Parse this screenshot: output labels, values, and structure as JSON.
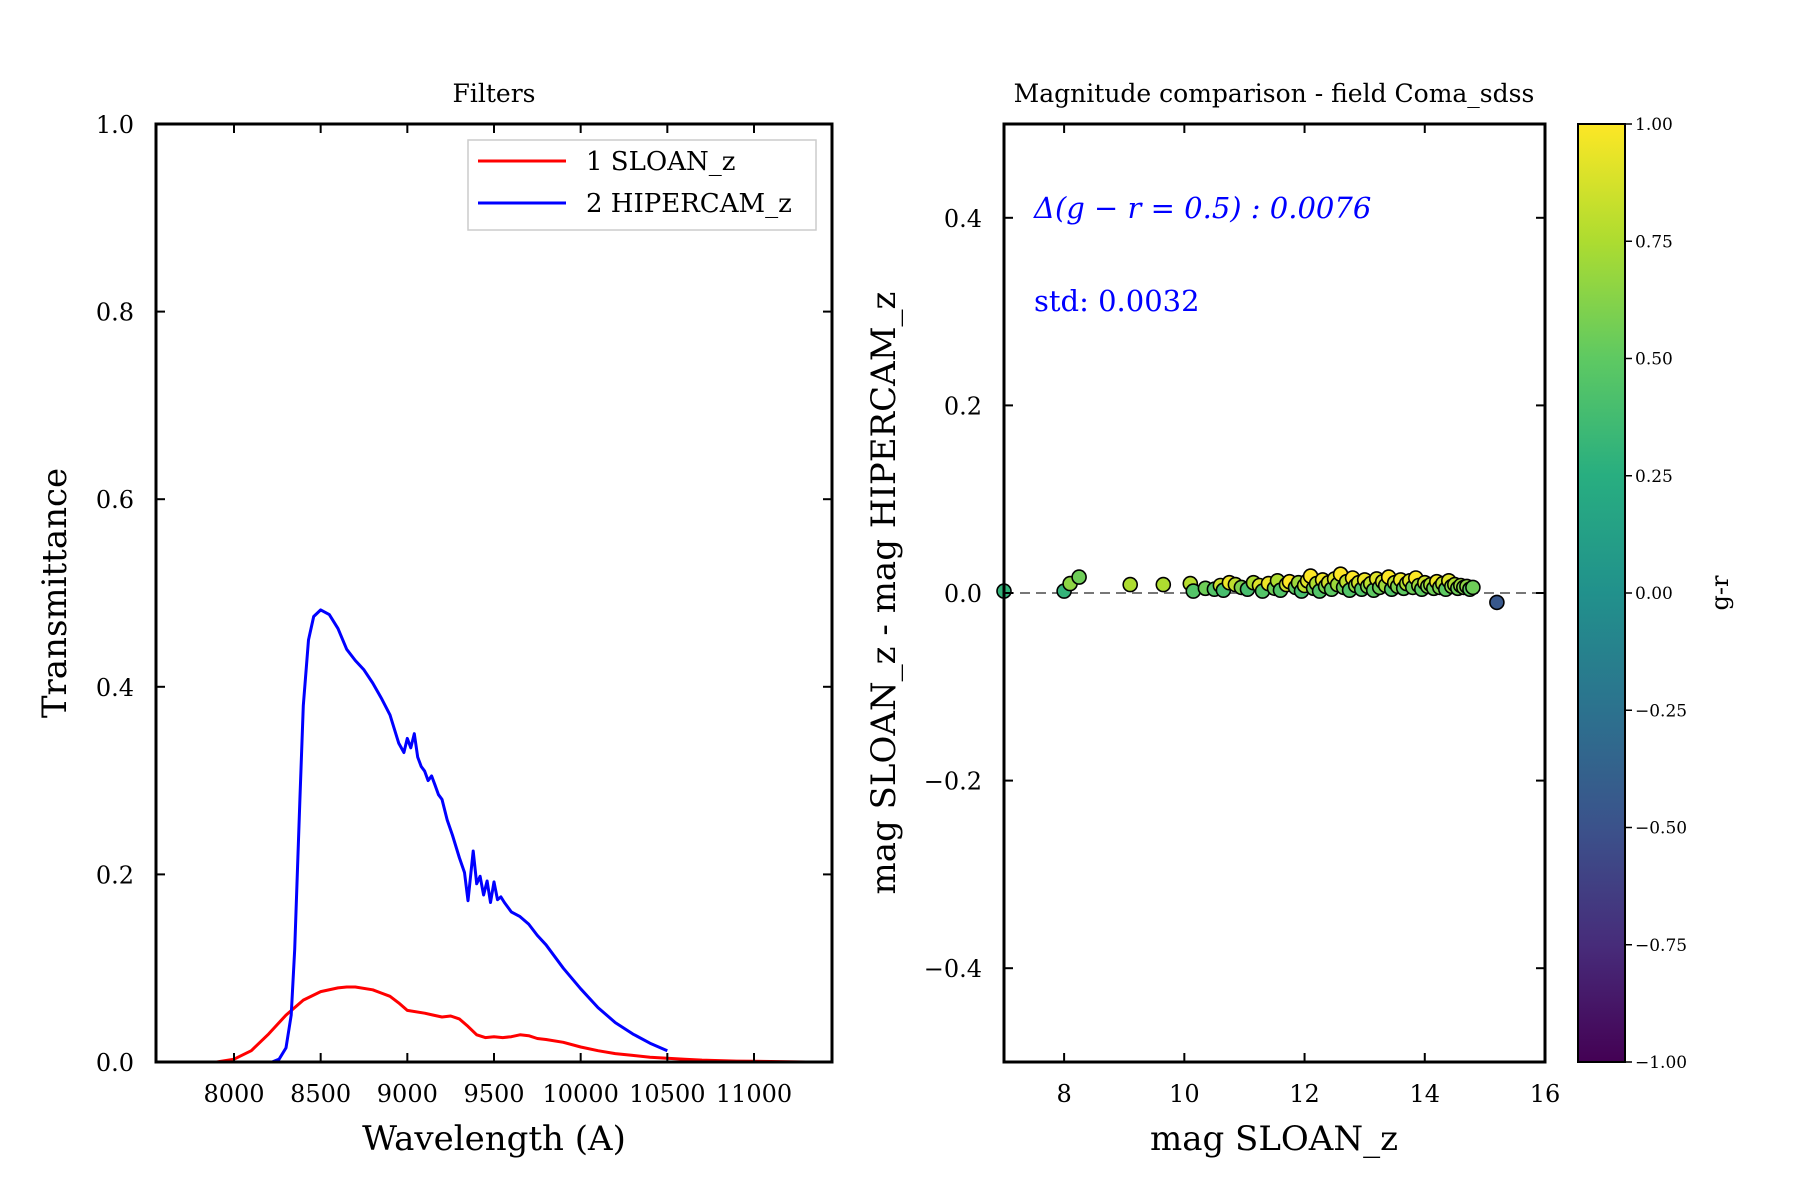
{
  "chart_data": [
    {
      "type": "line",
      "title": "Filters",
      "xlabel": "Wavelength (A)",
      "ylabel": "Transmittance",
      "xlim": [
        7550,
        11450
      ],
      "ylim": [
        0,
        1
      ],
      "xticks": [
        8000,
        8500,
        9000,
        9500,
        10000,
        10500,
        11000
      ],
      "xtick_labels": [
        "8000",
        "8500",
        "9000",
        "9500",
        "10000",
        "10500",
        "11000"
      ],
      "yticks": [
        0,
        0.2,
        0.4,
        0.6,
        0.8,
        1.0
      ],
      "ytick_labels": [
        "0.0",
        "0.2",
        "0.4",
        "0.6",
        "0.8",
        "1.0"
      ],
      "legend_position": "top-right",
      "series": [
        {
          "name": "1 SLOAN_z",
          "color": "#ff0000",
          "x": [
            7900,
            8000,
            8100,
            8200,
            8300,
            8400,
            8500,
            8600,
            8650,
            8700,
            8800,
            8900,
            8950,
            9000,
            9100,
            9150,
            9200,
            9250,
            9300,
            9350,
            9400,
            9450,
            9500,
            9550,
            9600,
            9650,
            9700,
            9750,
            9800,
            9900,
            10000,
            10100,
            10200,
            10300,
            10400,
            10500,
            10600,
            10700,
            10800,
            10900,
            11000,
            11200,
            11300
          ],
          "y": [
            0.0,
            0.003,
            0.012,
            0.03,
            0.05,
            0.066,
            0.075,
            0.079,
            0.08,
            0.08,
            0.077,
            0.07,
            0.063,
            0.055,
            0.052,
            0.05,
            0.048,
            0.049,
            0.046,
            0.038,
            0.029,
            0.026,
            0.027,
            0.026,
            0.027,
            0.029,
            0.028,
            0.025,
            0.024,
            0.021,
            0.016,
            0.012,
            0.009,
            0.007,
            0.005,
            0.004,
            0.003,
            0.002,
            0.0015,
            0.001,
            0.0007,
            0.0003,
            0.0
          ]
        },
        {
          "name": "2 HIPERCAM_z",
          "color": "#0000ff",
          "x": [
            8220,
            8260,
            8300,
            8330,
            8350,
            8380,
            8400,
            8430,
            8460,
            8500,
            8550,
            8600,
            8650,
            8700,
            8750,
            8800,
            8850,
            8900,
            8950,
            8980,
            9000,
            9020,
            9040,
            9060,
            9080,
            9100,
            9120,
            9140,
            9160,
            9180,
            9200,
            9230,
            9260,
            9300,
            9330,
            9350,
            9380,
            9400,
            9420,
            9440,
            9460,
            9480,
            9500,
            9520,
            9540,
            9560,
            9600,
            9650,
            9700,
            9750,
            9800,
            9900,
            10000,
            10100,
            10200,
            10300,
            10400,
            10500
          ],
          "y": [
            0.0,
            0.003,
            0.015,
            0.05,
            0.12,
            0.28,
            0.38,
            0.45,
            0.475,
            0.482,
            0.477,
            0.462,
            0.44,
            0.428,
            0.418,
            0.404,
            0.388,
            0.37,
            0.34,
            0.33,
            0.345,
            0.335,
            0.35,
            0.325,
            0.315,
            0.31,
            0.3,
            0.305,
            0.295,
            0.285,
            0.28,
            0.258,
            0.242,
            0.218,
            0.202,
            0.172,
            0.225,
            0.19,
            0.198,
            0.178,
            0.193,
            0.17,
            0.192,
            0.173,
            0.176,
            0.17,
            0.16,
            0.155,
            0.147,
            0.135,
            0.125,
            0.1,
            0.078,
            0.058,
            0.042,
            0.03,
            0.02,
            0.012
          ]
        }
      ]
    },
    {
      "type": "scatter",
      "title": "Magnitude comparison - field Coma_sdss",
      "xlabel": "mag SLOAN_z",
      "ylabel": "mag SLOAN_z - mag HIPERCAM_z",
      "xlim": [
        7,
        16
      ],
      "ylim": [
        -0.5,
        0.5
      ],
      "xticks": [
        8,
        10,
        12,
        14,
        16
      ],
      "xtick_labels": [
        "8",
        "10",
        "12",
        "14",
        "16"
      ],
      "yticks": [
        -0.4,
        -0.2,
        0.0,
        0.2,
        0.4
      ],
      "ytick_labels": [
        "−0.4",
        "−0.2",
        "0.0",
        "0.2",
        "0.4"
      ],
      "reference_line": {
        "y": 0,
        "style": "dashed",
        "color": "#777777"
      },
      "annotations": [
        "Δ(g − r = 0.5) : 0.0076",
        "std: 0.0032"
      ],
      "colorbar": {
        "label": "g-r",
        "range": [
          -1,
          1
        ],
        "ticks": [
          1.0,
          0.75,
          0.5,
          0.25,
          0.0,
          -0.25,
          -0.5,
          -0.75,
          -1.0
        ],
        "tick_labels": [
          "1.00",
          "0.75",
          "0.50",
          "0.25",
          "0.00",
          "−0.25",
          "−0.50",
          "−0.75",
          "−1.00"
        ],
        "colormap": "viridis"
      },
      "points": [
        {
          "x": 7.0,
          "y": 0.002,
          "c": 0.3
        },
        {
          "x": 8.0,
          "y": 0.002,
          "c": 0.3
        },
        {
          "x": 8.1,
          "y": 0.01,
          "c": 0.65
        },
        {
          "x": 8.25,
          "y": 0.017,
          "c": 0.55
        },
        {
          "x": 9.1,
          "y": 0.009,
          "c": 0.75
        },
        {
          "x": 9.65,
          "y": 0.009,
          "c": 0.75
        },
        {
          "x": 10.1,
          "y": 0.01,
          "c": 0.78
        },
        {
          "x": 10.15,
          "y": 0.002,
          "c": 0.45
        },
        {
          "x": 10.35,
          "y": 0.005,
          "c": 0.55
        },
        {
          "x": 10.5,
          "y": 0.004,
          "c": 0.45
        },
        {
          "x": 10.6,
          "y": 0.008,
          "c": 0.85
        },
        {
          "x": 10.65,
          "y": 0.003,
          "c": 0.4
        },
        {
          "x": 10.75,
          "y": 0.011,
          "c": 0.95
        },
        {
          "x": 10.85,
          "y": 0.009,
          "c": 0.8
        },
        {
          "x": 10.95,
          "y": 0.006,
          "c": 0.6
        },
        {
          "x": 11.05,
          "y": 0.004,
          "c": 0.4
        },
        {
          "x": 11.15,
          "y": 0.011,
          "c": 0.75
        },
        {
          "x": 11.25,
          "y": 0.008,
          "c": 0.9
        },
        {
          "x": 11.3,
          "y": 0.002,
          "c": 0.45
        },
        {
          "x": 11.4,
          "y": 0.01,
          "c": 0.95
        },
        {
          "x": 11.5,
          "y": 0.005,
          "c": 0.55
        },
        {
          "x": 11.55,
          "y": 0.013,
          "c": 0.75
        },
        {
          "x": 11.6,
          "y": 0.003,
          "c": 0.45
        },
        {
          "x": 11.7,
          "y": 0.009,
          "c": 0.85
        },
        {
          "x": 11.75,
          "y": 0.012,
          "c": 1.0
        },
        {
          "x": 11.85,
          "y": 0.006,
          "c": 0.5
        },
        {
          "x": 11.9,
          "y": 0.011,
          "c": 0.7
        },
        {
          "x": 11.95,
          "y": 0.002,
          "c": 0.4
        },
        {
          "x": 12.0,
          "y": 0.008,
          "c": 0.8
        },
        {
          "x": 12.05,
          "y": 0.013,
          "c": 0.9
        },
        {
          "x": 12.1,
          "y": 0.018,
          "c": 1.0
        },
        {
          "x": 12.15,
          "y": 0.005,
          "c": 0.55
        },
        {
          "x": 12.2,
          "y": 0.01,
          "c": 0.75
        },
        {
          "x": 12.25,
          "y": 0.002,
          "c": 0.45
        },
        {
          "x": 12.3,
          "y": 0.014,
          "c": 0.95
        },
        {
          "x": 12.35,
          "y": 0.007,
          "c": 0.6
        },
        {
          "x": 12.4,
          "y": 0.011,
          "c": 0.85
        },
        {
          "x": 12.45,
          "y": 0.004,
          "c": 0.5
        },
        {
          "x": 12.5,
          "y": 0.015,
          "c": 0.9
        },
        {
          "x": 12.55,
          "y": 0.009,
          "c": 0.7
        },
        {
          "x": 12.6,
          "y": 0.02,
          "c": 1.0
        },
        {
          "x": 12.65,
          "y": 0.006,
          "c": 0.55
        },
        {
          "x": 12.7,
          "y": 0.012,
          "c": 0.8
        },
        {
          "x": 12.75,
          "y": 0.003,
          "c": 0.45
        },
        {
          "x": 12.8,
          "y": 0.016,
          "c": 1.0
        },
        {
          "x": 12.85,
          "y": 0.008,
          "c": 0.65
        },
        {
          "x": 12.9,
          "y": 0.011,
          "c": 0.85
        },
        {
          "x": 12.95,
          "y": 0.004,
          "c": 0.45
        },
        {
          "x": 13.0,
          "y": 0.014,
          "c": 0.95
        },
        {
          "x": 13.05,
          "y": 0.007,
          "c": 0.6
        },
        {
          "x": 13.1,
          "y": 0.01,
          "c": 0.8
        },
        {
          "x": 13.15,
          "y": 0.003,
          "c": 0.5
        },
        {
          "x": 13.2,
          "y": 0.015,
          "c": 0.9
        },
        {
          "x": 13.25,
          "y": 0.006,
          "c": 0.55
        },
        {
          "x": 13.3,
          "y": 0.012,
          "c": 0.85
        },
        {
          "x": 13.35,
          "y": 0.008,
          "c": 0.7
        },
        {
          "x": 13.4,
          "y": 0.017,
          "c": 1.0
        },
        {
          "x": 13.45,
          "y": 0.004,
          "c": 0.45
        },
        {
          "x": 13.5,
          "y": 0.011,
          "c": 0.8
        },
        {
          "x": 13.55,
          "y": 0.007,
          "c": 0.6
        },
        {
          "x": 13.6,
          "y": 0.014,
          "c": 0.95
        },
        {
          "x": 13.65,
          "y": 0.005,
          "c": 0.5
        },
        {
          "x": 13.7,
          "y": 0.01,
          "c": 0.75
        },
        {
          "x": 13.75,
          "y": 0.013,
          "c": 0.9
        },
        {
          "x": 13.8,
          "y": 0.006,
          "c": 0.55
        },
        {
          "x": 13.85,
          "y": 0.016,
          "c": 1.0
        },
        {
          "x": 13.9,
          "y": 0.008,
          "c": 0.7
        },
        {
          "x": 13.95,
          "y": 0.004,
          "c": 0.5
        },
        {
          "x": 14.0,
          "y": 0.011,
          "c": 0.85
        },
        {
          "x": 14.05,
          "y": 0.007,
          "c": 0.6
        },
        {
          "x": 14.1,
          "y": 0.009,
          "c": 0.75
        },
        {
          "x": 14.15,
          "y": 0.005,
          "c": 0.55
        },
        {
          "x": 14.2,
          "y": 0.012,
          "c": 0.95
        },
        {
          "x": 14.25,
          "y": 0.006,
          "c": 0.6
        },
        {
          "x": 14.3,
          "y": 0.01,
          "c": 0.8
        },
        {
          "x": 14.35,
          "y": 0.004,
          "c": 0.5
        },
        {
          "x": 14.4,
          "y": 0.013,
          "c": 0.9
        },
        {
          "x": 14.45,
          "y": 0.007,
          "c": 0.65
        },
        {
          "x": 14.5,
          "y": 0.009,
          "c": 0.75
        },
        {
          "x": 14.55,
          "y": 0.005,
          "c": 0.55
        },
        {
          "x": 14.6,
          "y": 0.008,
          "c": 0.7
        },
        {
          "x": 14.65,
          "y": 0.006,
          "c": 0.6
        },
        {
          "x": 14.7,
          "y": 0.007,
          "c": 0.65
        },
        {
          "x": 14.75,
          "y": 0.004,
          "c": 0.5
        },
        {
          "x": 14.8,
          "y": 0.006,
          "c": 0.55
        },
        {
          "x": 15.2,
          "y": -0.01,
          "c": -0.45
        }
      ]
    }
  ]
}
